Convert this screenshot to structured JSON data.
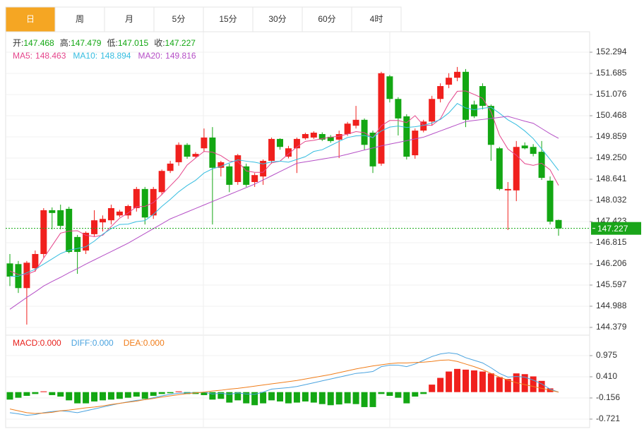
{
  "tabs": [
    "日",
    "周",
    "月",
    "5分",
    "15分",
    "30分",
    "60分",
    "4时"
  ],
  "selected_tab": 0,
  "chart_data": [
    {
      "type": "candlestick",
      "info": [
        {
          "label": "开:",
          "value": 147.468
        },
        {
          "label": "高:",
          "value": 147.479
        },
        {
          "label": "低:",
          "value": 147.015
        },
        {
          "label": "收:",
          "value": 147.227
        }
      ],
      "info_color": "#13a713",
      "last_price": 147.227,
      "up_color": "#f0201d",
      "down_color": "#13a713",
      "ylim": [
        144.156,
        152.619
      ],
      "yticks": [
        152.294,
        151.685,
        151.076,
        150.468,
        149.859,
        {
          "value": 149.25,
          "label": "149.250"
        },
        148.641,
        148.032,
        147.423,
        146.815,
        146.206,
        145.597,
        144.988,
        144.379
      ],
      "grid": true,
      "candles": [
        [
          146.22,
          146.49,
          145.57,
          145.84
        ],
        [
          146.2,
          146.29,
          145.37,
          145.51
        ],
        [
          145.51,
          146.29,
          144.46,
          146.24
        ],
        [
          146.08,
          146.59,
          145.98,
          146.49
        ],
        [
          146.49,
          147.81,
          146.39,
          147.75
        ],
        [
          147.75,
          147.83,
          147.2,
          147.67
        ],
        [
          147.75,
          147.91,
          147.2,
          147.3
        ],
        [
          147.79,
          147.85,
          146.51,
          146.55
        ],
        [
          146.98,
          147.04,
          145.92,
          146.55
        ],
        [
          146.59,
          147.14,
          146.49,
          147.1
        ],
        [
          147.06,
          147.75,
          147.0,
          147.46
        ],
        [
          147.4,
          147.6,
          147.14,
          147.5
        ],
        [
          147.46,
          147.91,
          147.34,
          147.81
        ],
        [
          147.6,
          147.76,
          147.55,
          147.71
        ],
        [
          147.6,
          147.91,
          147.5,
          147.87
        ],
        [
          147.81,
          148.42,
          147.71,
          148.36
        ],
        [
          148.36,
          148.42,
          147.34,
          147.54
        ],
        [
          147.6,
          148.42,
          147.5,
          148.36
        ],
        [
          148.27,
          148.92,
          148.19,
          148.88
        ],
        [
          148.88,
          149.17,
          148.82,
          149.09
        ],
        [
          149.13,
          149.7,
          149.03,
          149.63
        ],
        [
          149.63,
          149.68,
          149.23,
          149.29
        ],
        [
          149.29,
          149.42,
          149.24,
          149.37
        ],
        [
          149.53,
          150.1,
          149.43,
          149.84
        ],
        [
          149.84,
          150.14,
          147.34,
          148.97
        ],
        [
          148.97,
          149.17,
          148.72,
          149.13
        ],
        [
          149.01,
          149.09,
          148.27,
          148.48
        ],
        [
          148.56,
          149.37,
          148.48,
          149.33
        ],
        [
          149.01,
          149.09,
          148.42,
          148.48
        ],
        [
          148.56,
          148.82,
          148.42,
          148.76
        ],
        [
          148.72,
          149.21,
          148.48,
          149.17
        ],
        [
          149.17,
          149.84,
          149.09,
          149.8
        ],
        [
          149.8,
          149.82,
          149.49,
          149.57
        ],
        [
          149.29,
          149.6,
          149.24,
          149.53
        ],
        [
          149.53,
          149.84,
          148.82,
          149.8
        ],
        [
          149.82,
          149.98,
          149.78,
          149.94
        ],
        [
          149.84,
          150.02,
          149.8,
          149.98
        ],
        [
          149.94,
          149.99,
          149.74,
          149.78
        ],
        [
          149.86,
          149.91,
          149.69,
          149.74
        ],
        [
          149.78,
          150.04,
          149.25,
          149.94
        ],
        [
          149.94,
          150.29,
          149.89,
          150.24
        ],
        [
          150.18,
          150.75,
          150.1,
          150.35
        ],
        [
          150.35,
          150.39,
          149.49,
          149.63
        ],
        [
          149.98,
          150.04,
          148.82,
          149.01
        ],
        [
          149.09,
          151.73,
          149.03,
          151.69
        ],
        [
          151.6,
          151.64,
          150.85,
          150.95
        ],
        [
          150.95,
          151.0,
          149.9,
          150.39
        ],
        [
          150.45,
          150.51,
          149.21,
          149.29
        ],
        [
          149.33,
          150.1,
          149.23,
          150.04
        ],
        [
          150.04,
          150.35,
          149.99,
          150.3
        ],
        [
          150.3,
          151.04,
          150.18,
          150.95
        ],
        [
          150.95,
          151.4,
          150.85,
          151.32
        ],
        [
          151.36,
          151.69,
          151.26,
          151.56
        ],
        [
          151.56,
          151.87,
          151.46,
          151.73
        ],
        [
          151.73,
          151.81,
          150.14,
          150.35
        ],
        [
          150.79,
          150.9,
          150.4,
          150.45
        ],
        [
          151.32,
          151.4,
          150.65,
          150.75
        ],
        [
          150.75,
          150.79,
          149.17,
          149.63
        ],
        [
          149.53,
          149.57,
          148.32,
          148.36
        ],
        [
          148.32,
          148.56,
          147.18,
          148.36
        ],
        [
          148.32,
          149.74,
          148.01,
          149.57
        ],
        [
          149.61,
          149.7,
          149.5,
          149.53
        ],
        [
          149.57,
          149.65,
          149.3,
          149.37
        ],
        [
          149.43,
          149.74,
          148.62,
          148.68
        ],
        [
          148.6,
          148.72,
          147.34,
          147.42
        ],
        [
          147.468,
          147.479,
          147.015,
          147.227
        ]
      ],
      "ma": [
        {
          "label": "MA5:",
          "last": 148.463,
          "color": "#e5468c",
          "values": [
            146.0,
            145.9,
            145.9,
            146.0,
            146.37,
            146.73,
            147.09,
            147.15,
            147.16,
            147.03,
            146.99,
            147.03,
            147.28,
            147.52,
            147.67,
            147.85,
            147.86,
            147.97,
            148.2,
            148.45,
            148.7,
            149.05,
            149.25,
            149.44,
            149.42,
            149.32,
            149.16,
            149.15,
            148.88,
            148.84,
            148.84,
            149.11,
            149.16,
            149.37,
            149.57,
            149.73,
            149.76,
            149.81,
            149.85,
            149.88,
            149.94,
            150.01,
            149.98,
            149.83,
            150.18,
            150.33,
            150.33,
            150.27,
            150.47,
            150.19,
            150.19,
            150.38,
            150.83,
            151.17,
            151.18,
            151.08,
            150.97,
            150.58,
            149.91,
            149.51,
            149.33,
            149.09,
            149.04,
            149.1,
            148.91,
            148.463
          ]
        },
        {
          "label": "MA10:",
          "last": 148.894,
          "color": "#36bde0",
          "values": [
            145.85,
            145.85,
            145.95,
            146.05,
            146.2,
            146.35,
            146.5,
            146.6,
            146.65,
            146.7,
            146.86,
            147.06,
            147.22,
            147.34,
            147.35,
            147.42,
            147.45,
            147.63,
            147.86,
            148.06,
            148.28,
            148.46,
            148.61,
            148.82,
            148.94,
            149.01,
            149.11,
            149.2,
            149.16,
            149.13,
            149.08,
            149.14,
            149.16,
            149.13,
            149.21,
            149.29,
            149.44,
            149.49,
            149.61,
            149.73,
            149.84,
            149.89,
            149.9,
            149.84,
            150.03,
            150.14,
            150.17,
            150.13,
            150.15,
            150.19,
            150.26,
            150.36,
            150.55,
            150.82,
            150.69,
            150.64,
            150.68,
            150.71,
            150.54,
            150.35,
            150.21,
            150.03,
            149.81,
            149.51,
            149.21,
            148.894
          ]
        },
        {
          "label": "MA20:",
          "last": 149.816,
          "color": "#b54fc6",
          "values": [
            144.9,
            145.07,
            145.24,
            145.4,
            145.57,
            145.7,
            145.82,
            145.95,
            146.07,
            146.2,
            146.32,
            146.44,
            146.56,
            146.68,
            146.8,
            146.94,
            147.08,
            147.22,
            147.36,
            147.5,
            147.6,
            147.7,
            147.8,
            147.9,
            148.0,
            148.1,
            148.2,
            148.3,
            148.4,
            148.5,
            148.62,
            148.74,
            148.86,
            148.98,
            149.1,
            149.14,
            149.18,
            149.22,
            149.26,
            149.3,
            149.36,
            149.42,
            149.48,
            149.54,
            149.6,
            149.65,
            149.7,
            149.75,
            149.8,
            149.85,
            149.94,
            150.03,
            150.12,
            150.21,
            150.3,
            150.33,
            150.36,
            150.39,
            150.42,
            150.45,
            150.38,
            150.31,
            150.25,
            150.1,
            149.95,
            149.816
          ]
        }
      ]
    },
    {
      "type": "macd",
      "legend": [
        {
          "label": "MACD:",
          "value": 0,
          "value_label": "0.000",
          "color": "#e8211d"
        },
        {
          "label": "DIFF:",
          "value": 0,
          "value_label": "0.000",
          "color": "#4aa3df"
        },
        {
          "label": "DEA:",
          "value": 0,
          "value_label": "0.000",
          "color": "#f07d1a"
        }
      ],
      "ylim": [
        -0.948,
        1.484
      ],
      "yticks": [
        0.975,
        {
          "value": 0.41,
          "label": "0.410"
        },
        -0.156,
        -0.721
      ],
      "up_color": "#f0201d",
      "down_color": "#13a713",
      "histogram": [
        -0.2,
        -0.15,
        -0.1,
        -0.05,
        0.02,
        -0.08,
        -0.12,
        -0.22,
        -0.3,
        -0.3,
        -0.25,
        -0.22,
        -0.2,
        -0.18,
        -0.15,
        -0.12,
        -0.18,
        -0.1,
        -0.05,
        -0.03,
        0.02,
        -0.05,
        -0.05,
        -0.08,
        -0.2,
        -0.18,
        -0.28,
        -0.22,
        -0.3,
        -0.35,
        -0.3,
        -0.22,
        -0.25,
        -0.3,
        -0.28,
        -0.25,
        -0.28,
        -0.32,
        -0.35,
        -0.33,
        -0.3,
        -0.32,
        -0.4,
        -0.4,
        -0.05,
        -0.1,
        -0.15,
        -0.3,
        -0.12,
        -0.05,
        0.2,
        0.38,
        0.55,
        0.62,
        0.6,
        0.58,
        0.55,
        0.5,
        0.4,
        0.35,
        0.5,
        0.48,
        0.42,
        0.3,
        0.1,
        0
      ],
      "diff": [
        -0.55,
        -0.58,
        -0.62,
        -0.6,
        -0.55,
        -0.52,
        -0.5,
        -0.52,
        -0.55,
        -0.5,
        -0.45,
        -0.4,
        -0.35,
        -0.3,
        -0.26,
        -0.22,
        -0.2,
        -0.15,
        -0.1,
        -0.06,
        -0.03,
        -0.02,
        -0.02,
        0.0,
        -0.05,
        -0.03,
        -0.06,
        -0.02,
        -0.05,
        -0.06,
        0.0,
        0.08,
        0.1,
        0.12,
        0.15,
        0.2,
        0.25,
        0.3,
        0.35,
        0.4,
        0.45,
        0.5,
        0.52,
        0.55,
        0.68,
        0.72,
        0.72,
        0.68,
        0.75,
        0.85,
        0.95,
        1.02,
        1.05,
        1.02,
        0.92,
        0.85,
        0.78,
        0.65,
        0.5,
        0.4,
        0.42,
        0.4,
        0.32,
        0.22,
        0.08,
        0
      ],
      "dea": [
        -0.45,
        -0.5,
        -0.55,
        -0.57,
        -0.56,
        -0.54,
        -0.5,
        -0.48,
        -0.45,
        -0.42,
        -0.4,
        -0.37,
        -0.33,
        -0.3,
        -0.27,
        -0.24,
        -0.2,
        -0.17,
        -0.13,
        -0.1,
        -0.07,
        -0.04,
        -0.02,
        0.0,
        0.03,
        0.05,
        0.08,
        0.1,
        0.13,
        0.16,
        0.19,
        0.22,
        0.25,
        0.28,
        0.31,
        0.35,
        0.39,
        0.43,
        0.47,
        0.52,
        0.57,
        0.62,
        0.66,
        0.7,
        0.73,
        0.76,
        0.78,
        0.78,
        0.79,
        0.8,
        0.82,
        0.85,
        0.86,
        0.82,
        0.75,
        0.68,
        0.6,
        0.5,
        0.4,
        0.32,
        0.25,
        0.2,
        0.15,
        0.1,
        0.05,
        0
      ]
    }
  ]
}
